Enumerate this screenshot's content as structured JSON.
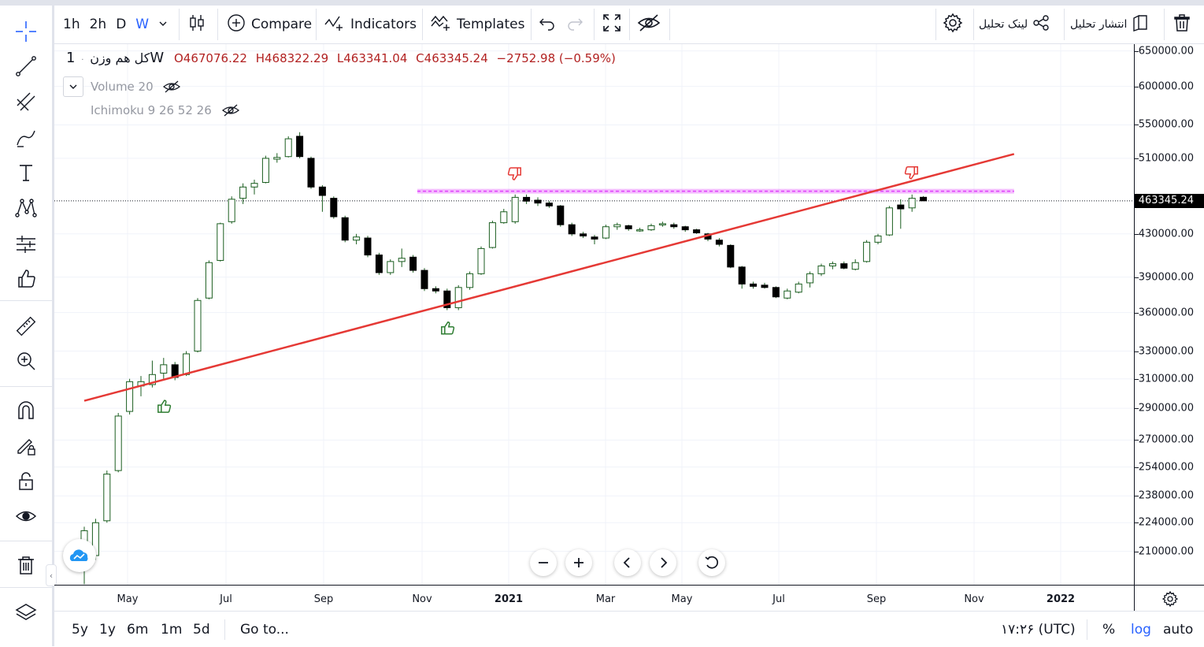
{
  "toolbar": {
    "timeframes": [
      "1h",
      "2h",
      "D",
      "W"
    ],
    "active_timeframe": "W",
    "compare_label": "Compare",
    "indicators_label": "Indicators",
    "templates_label": "Templates",
    "share_link_label": "لینک تحلیل",
    "publish_label": "انتشار تحلیل"
  },
  "legend": {
    "symbol": "کل هم وزن",
    "interval": "1W",
    "open": "O467076.22",
    "high": "H468322.29",
    "low": "L463341.04",
    "close": "C463345.24",
    "change": "−2752.98 (−0.59%)",
    "volume": "Volume 20",
    "ichimoku": "Ichimoku 9 26 52 26"
  },
  "price_axis": {
    "labels": [
      "650000.00",
      "600000.00",
      "550000.00",
      "510000.00",
      "430000.00",
      "390000.00",
      "360000.00",
      "330000.00",
      "310000.00",
      "290000.00",
      "270000.00",
      "254000.00",
      "238000.00",
      "224000.00",
      "210000.00"
    ],
    "current_price": "463345.24"
  },
  "time_axis": {
    "labels": [
      "May",
      "Jul",
      "Sep",
      "Nov",
      "2021",
      "Mar",
      "May",
      "Jul",
      "Sep",
      "Nov",
      "2022"
    ]
  },
  "bottom_bar": {
    "ranges": [
      "5y",
      "1y",
      "6m",
      "1m",
      "5d"
    ],
    "goto_label": "Go to...",
    "time": "۱۷:۲۶ (UTC)",
    "percent": "%",
    "log": "log",
    "auto": "auto"
  },
  "colors": {
    "up": "#ffffff",
    "down": "#000000",
    "candle_border": "#1b5e20",
    "trendline": "#e53935",
    "resistance_band": "#e040fb",
    "accent": "#2962ff"
  },
  "chart_data": {
    "type": "candlestick",
    "scale": "log",
    "x_unit": "week",
    "ylim": [
      200000,
      660000
    ],
    "last_price": 463345.24,
    "candles": [
      {
        "o": 210000,
        "h": 222000,
        "l": 195000,
        "c": 220000
      },
      {
        "o": 208000,
        "h": 226000,
        "l": 206000,
        "c": 224000
      },
      {
        "o": 225000,
        "h": 252000,
        "l": 224000,
        "c": 250000
      },
      {
        "o": 252000,
        "h": 287000,
        "l": 251000,
        "c": 285000
      },
      {
        "o": 288000,
        "h": 310000,
        "l": 286000,
        "c": 308000
      },
      {
        "o": 305000,
        "h": 312000,
        "l": 298000,
        "c": 308000
      },
      {
        "o": 306000,
        "h": 323000,
        "l": 304000,
        "c": 313000
      },
      {
        "o": 314000,
        "h": 325000,
        "l": 310000,
        "c": 320000
      },
      {
        "o": 320000,
        "h": 322000,
        "l": 309000,
        "c": 311000
      },
      {
        "o": 313000,
        "h": 330000,
        "l": 312000,
        "c": 328000
      },
      {
        "o": 330000,
        "h": 372000,
        "l": 329000,
        "c": 370000
      },
      {
        "o": 372000,
        "h": 405000,
        "l": 371000,
        "c": 403000
      },
      {
        "o": 405000,
        "h": 441000,
        "l": 404000,
        "c": 440000
      },
      {
        "o": 442000,
        "h": 468000,
        "l": 440000,
        "c": 465000
      },
      {
        "o": 466000,
        "h": 482000,
        "l": 460000,
        "c": 478000
      },
      {
        "o": 478000,
        "h": 486000,
        "l": 470000,
        "c": 482000
      },
      {
        "o": 483000,
        "h": 513000,
        "l": 482000,
        "c": 510000
      },
      {
        "o": 509000,
        "h": 516000,
        "l": 505000,
        "c": 511000
      },
      {
        "o": 512000,
        "h": 536000,
        "l": 511000,
        "c": 533000
      },
      {
        "o": 536000,
        "h": 541000,
        "l": 510000,
        "c": 512000
      },
      {
        "o": 510000,
        "h": 512000,
        "l": 476000,
        "c": 478000
      },
      {
        "o": 478000,
        "h": 480000,
        "l": 452000,
        "c": 469000
      },
      {
        "o": 466000,
        "h": 468000,
        "l": 445000,
        "c": 447000
      },
      {
        "o": 446000,
        "h": 448000,
        "l": 422000,
        "c": 424000
      },
      {
        "o": 424000,
        "h": 430000,
        "l": 420000,
        "c": 427000
      },
      {
        "o": 426000,
        "h": 428000,
        "l": 408000,
        "c": 410000
      },
      {
        "o": 410000,
        "h": 412000,
        "l": 392000,
        "c": 394000
      },
      {
        "o": 394000,
        "h": 406000,
        "l": 392000,
        "c": 404000
      },
      {
        "o": 404000,
        "h": 416000,
        "l": 399000,
        "c": 407000
      },
      {
        "o": 408000,
        "h": 410000,
        "l": 394000,
        "c": 396000
      },
      {
        "o": 396000,
        "h": 398000,
        "l": 378000,
        "c": 380000
      },
      {
        "o": 380000,
        "h": 382000,
        "l": 376000,
        "c": 378000
      },
      {
        "o": 378000,
        "h": 380000,
        "l": 362000,
        "c": 364000
      },
      {
        "o": 364000,
        "h": 383000,
        "l": 362000,
        "c": 381000
      },
      {
        "o": 381000,
        "h": 395000,
        "l": 379000,
        "c": 393000
      },
      {
        "o": 393000,
        "h": 418000,
        "l": 392000,
        "c": 416000
      },
      {
        "o": 417000,
        "h": 443000,
        "l": 416000,
        "c": 441000
      },
      {
        "o": 441000,
        "h": 455000,
        "l": 440000,
        "c": 452000
      },
      {
        "o": 442000,
        "h": 470000,
        "l": 440000,
        "c": 467000
      },
      {
        "o": 467000,
        "h": 470000,
        "l": 460000,
        "c": 463000
      },
      {
        "o": 464000,
        "h": 467000,
        "l": 458000,
        "c": 461000
      },
      {
        "o": 461000,
        "h": 463000,
        "l": 456000,
        "c": 458000
      },
      {
        "o": 458000,
        "h": 459000,
        "l": 437000,
        "c": 439000
      },
      {
        "o": 439000,
        "h": 441000,
        "l": 428000,
        "c": 430000
      },
      {
        "o": 430000,
        "h": 432000,
        "l": 426000,
        "c": 428000
      },
      {
        "o": 427000,
        "h": 429000,
        "l": 420000,
        "c": 425000
      },
      {
        "o": 426000,
        "h": 439000,
        "l": 425000,
        "c": 437000
      },
      {
        "o": 437000,
        "h": 441000,
        "l": 434000,
        "c": 439000
      },
      {
        "o": 438000,
        "h": 439000,
        "l": 433000,
        "c": 435000
      },
      {
        "o": 433000,
        "h": 436000,
        "l": 432000,
        "c": 434000
      },
      {
        "o": 434000,
        "h": 440000,
        "l": 433000,
        "c": 438000
      },
      {
        "o": 439000,
        "h": 442000,
        "l": 437000,
        "c": 440000
      },
      {
        "o": 439000,
        "h": 441000,
        "l": 435000,
        "c": 437000
      },
      {
        "o": 437000,
        "h": 438000,
        "l": 432000,
        "c": 434000
      },
      {
        "o": 434000,
        "h": 435000,
        "l": 430000,
        "c": 431000
      },
      {
        "o": 430000,
        "h": 431000,
        "l": 423000,
        "c": 425000
      },
      {
        "o": 424000,
        "h": 426000,
        "l": 418000,
        "c": 420000
      },
      {
        "o": 419000,
        "h": 420000,
        "l": 398000,
        "c": 399000
      },
      {
        "o": 399000,
        "h": 400000,
        "l": 380000,
        "c": 384000
      },
      {
        "o": 384000,
        "h": 386000,
        "l": 380000,
        "c": 382000
      },
      {
        "o": 383000,
        "h": 385000,
        "l": 380000,
        "c": 381000
      },
      {
        "o": 381000,
        "h": 382000,
        "l": 372000,
        "c": 373000
      },
      {
        "o": 372000,
        "h": 380000,
        "l": 371000,
        "c": 378000
      },
      {
        "o": 377000,
        "h": 386000,
        "l": 376000,
        "c": 384000
      },
      {
        "o": 385000,
        "h": 395000,
        "l": 381000,
        "c": 393000
      },
      {
        "o": 393000,
        "h": 402000,
        "l": 391000,
        "c": 400000
      },
      {
        "o": 400000,
        "h": 404000,
        "l": 397000,
        "c": 402000
      },
      {
        "o": 402000,
        "h": 404000,
        "l": 397000,
        "c": 398000
      },
      {
        "o": 397000,
        "h": 406000,
        "l": 396000,
        "c": 403000
      },
      {
        "o": 404000,
        "h": 424000,
        "l": 403000,
        "c": 422000
      },
      {
        "o": 422000,
        "h": 430000,
        "l": 420000,
        "c": 428000
      },
      {
        "o": 429000,
        "h": 458000,
        "l": 428000,
        "c": 456000
      },
      {
        "o": 459000,
        "h": 465000,
        "l": 435000,
        "c": 455000
      },
      {
        "o": 456000,
        "h": 470000,
        "l": 452000,
        "c": 466000
      },
      {
        "o": 467076,
        "h": 468322,
        "l": 463341,
        "c": 463345
      }
    ],
    "trendline": {
      "x": [
        0,
        82
      ],
      "y": [
        295000,
        515000
      ]
    },
    "resistance_band": {
      "x": [
        30,
        82
      ],
      "y": [
        471000,
        476000
      ]
    },
    "signals": [
      {
        "type": "buy",
        "x": 7,
        "y": 300000
      },
      {
        "type": "buy",
        "x": 32,
        "y": 358000
      },
      {
        "type": "sell",
        "x": 38,
        "y": 480000
      },
      {
        "type": "sell",
        "x": 73,
        "y": 481000
      }
    ]
  }
}
